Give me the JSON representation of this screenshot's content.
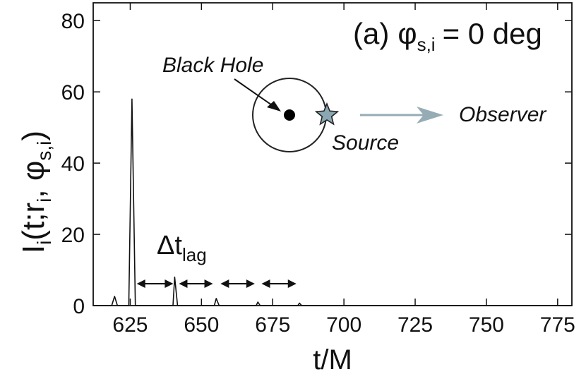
{
  "chart_data": {
    "type": "line",
    "panel_label": "(a)",
    "condition": {
      "symbol": "φ",
      "subscript": "s,i",
      "equals": "= 0 deg"
    },
    "xlabel": "t/M",
    "ylabel": {
      "main": "I",
      "sub_main": "i",
      "open": "(t;r",
      "sub_r": "i",
      "mid": ", φ",
      "sub_phi": "s,i",
      "close": ")"
    },
    "xlim": [
      612,
      780
    ],
    "ylim": [
      0,
      85
    ],
    "xticks": [
      625,
      650,
      675,
      700,
      725,
      750,
      775
    ],
    "yticks": [
      0,
      20,
      40,
      60,
      80
    ],
    "grid": false,
    "series": [
      {
        "x": [
          612,
          618.5,
          619.5,
          620.5,
          624.5,
          625.6,
          626.8,
          640,
          640.6,
          641.6,
          654.5,
          655.2,
          656.2,
          669.2,
          669.8,
          670.6,
          683.8,
          684.4,
          685.2,
          780
        ],
        "y": [
          0,
          0,
          2.6,
          0,
          0,
          58,
          0,
          0,
          8,
          0,
          0,
          2.0,
          0,
          0,
          1.0,
          0,
          0,
          0.7,
          0,
          0
        ]
      }
    ],
    "lag_arrows": [
      [
        626.8,
        640.6
      ],
      [
        641.6,
        654.5
      ],
      [
        656.2,
        669.2
      ],
      [
        670.6,
        683.8
      ]
    ],
    "lag_label": {
      "delta": "Δt",
      "subscript": "lag"
    },
    "schematic": {
      "black_hole_label": "Black Hole",
      "source_label": "Source",
      "observer_label": "Observer",
      "orbit_color": "#222222",
      "source_color": "#8aa7b2",
      "observer_arrow_color": "#96acb5"
    }
  }
}
